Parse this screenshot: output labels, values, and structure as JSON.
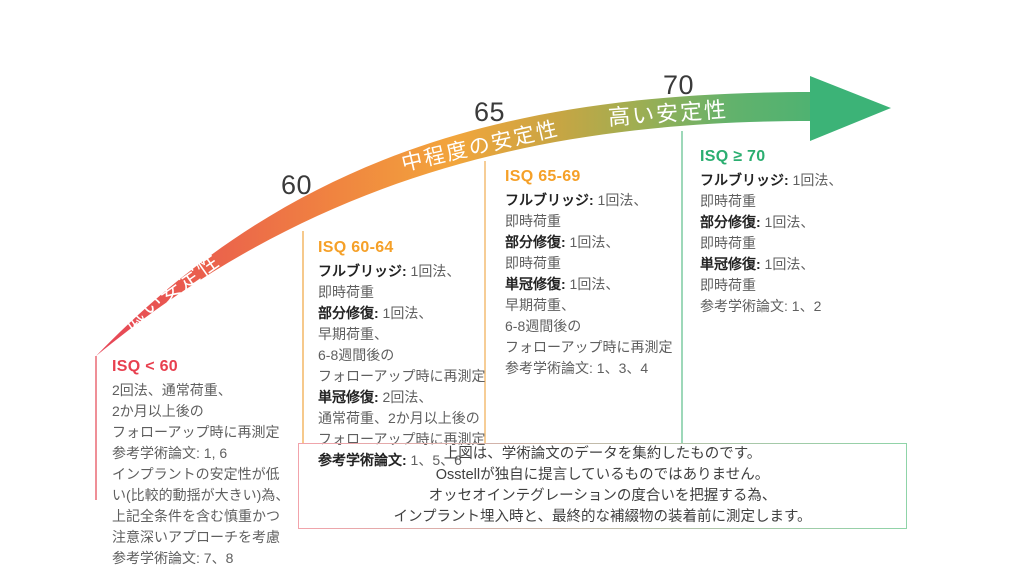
{
  "arc": {
    "ticks": [
      "60",
      "65",
      "70"
    ],
    "labels": [
      "低い安定性",
      "中程度の安定性",
      "高い安定性"
    ],
    "gradient": [
      "#e64458",
      "#ea5f4d",
      "#f08440",
      "#f2a53c",
      "#c8a543",
      "#9fae52",
      "#62b26c",
      "#3cb377"
    ],
    "arrowhead_color": "#3cb377"
  },
  "columns": [
    {
      "header": "ISQ < 60",
      "header_color": "#e8404f",
      "line_color": "#ef8f97",
      "lines": [
        {
          "b": "",
          "t": "2回法、通常荷重、"
        },
        {
          "b": "",
          "t": "2か月以上後の"
        },
        {
          "b": "",
          "t": "フォローアップ時に再測定"
        },
        {
          "b": "",
          "t": "参考学術論文: 1, 6"
        },
        {
          "b": "",
          "t": "インプラントの安定性が低"
        },
        {
          "b": "",
          "t": "い(比較的動揺が大きい)為、"
        },
        {
          "b": "",
          "t": "上記全条件を含む慎重かつ"
        },
        {
          "b": "",
          "t": "注意深いアプローチを考慮"
        },
        {
          "b": "",
          "t": "参考学術論文: 7、8"
        }
      ]
    },
    {
      "header": "ISQ 60-64",
      "header_color": "#f5a028",
      "line_color": "#f6c98c",
      "lines": [
        {
          "b": "フルブリッジ:",
          "t": " 1回法、"
        },
        {
          "b": "",
          "t": "即時荷重"
        },
        {
          "b": "部分修復:",
          "t": " 1回法、"
        },
        {
          "b": "",
          "t": "早期荷重、"
        },
        {
          "b": "",
          "t": "6-8週間後の"
        },
        {
          "b": "",
          "t": "フォローアップ時に再測定"
        },
        {
          "b": "単冠修復:",
          "t": " 2回法、"
        },
        {
          "b": "",
          "t": "通常荷重、2か月以上後の"
        },
        {
          "b": "",
          "t": "フォローアップ時に再測定"
        },
        {
          "b": "参考学術論文:",
          "t": " 1、5、6"
        }
      ]
    },
    {
      "header": "ISQ 65-69",
      "header_color": "#f5a028",
      "line_color": "#f6cd96",
      "lines": [
        {
          "b": "フルブリッジ:",
          "t": " 1回法、"
        },
        {
          "b": "",
          "t": "即時荷重"
        },
        {
          "b": "部分修復:",
          "t": " 1回法、"
        },
        {
          "b": "",
          "t": "即時荷重"
        },
        {
          "b": "単冠修復:",
          "t": " 1回法、"
        },
        {
          "b": "",
          "t": "早期荷重、"
        },
        {
          "b": "",
          "t": "6-8週間後の"
        },
        {
          "b": "",
          "t": "フォローアップ時に再測定"
        },
        {
          "b": "",
          "t": "参考学術論文: 1、3、4"
        }
      ]
    },
    {
      "header": "ISQ ≥ 70",
      "header_color": "#2bae70",
      "line_color": "#9dd8b9",
      "lines": [
        {
          "b": "フルブリッジ:",
          "t": " 1回法、"
        },
        {
          "b": "",
          "t": "即時荷重"
        },
        {
          "b": "部分修復:",
          "t": " 1回法、"
        },
        {
          "b": "",
          "t": "即時荷重"
        },
        {
          "b": "単冠修復:",
          "t": " 1回法、"
        },
        {
          "b": "",
          "t": "即時荷重"
        },
        {
          "b": "",
          "t": "参考学術論文: 1、2"
        }
      ]
    }
  ],
  "note": {
    "border_from": "#f2a3ab",
    "border_to": "#8fd4a8",
    "lines": [
      "上図は、学術論文のデータを集約したものです。",
      "Osstellが独自に提言しているものではありません。",
      "オッセオインテグレーションの度合いを把握する為、",
      "インプラント埋入時と、最終的な補綴物の装着前に測定します。"
    ]
  }
}
